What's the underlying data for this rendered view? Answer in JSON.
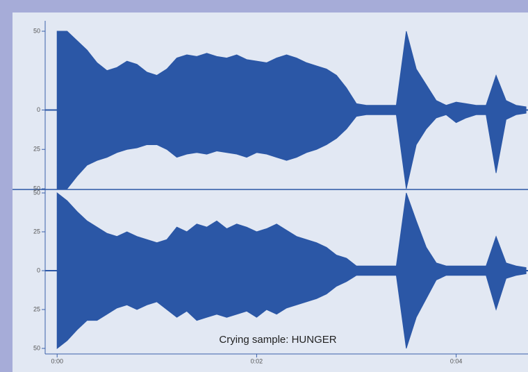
{
  "chart_data": {
    "type": "waveform",
    "caption": "Crying sample: HUNGER",
    "color": "#2b57a6",
    "x": [
      0,
      0.1,
      0.2,
      0.3,
      0.4,
      0.5,
      0.6,
      0.7,
      0.8,
      0.9,
      1.0,
      1.1,
      1.2,
      1.3,
      1.4,
      1.5,
      1.6,
      1.7,
      1.8,
      1.9,
      2.0,
      2.1,
      2.2,
      2.3,
      2.4,
      2.5,
      2.6,
      2.7,
      2.8,
      2.9,
      3.0,
      3.1,
      3.2,
      3.3,
      3.4,
      3.5,
      3.6,
      3.7,
      3.8,
      3.9,
      4.0,
      4.1,
      4.2,
      4.3,
      4.4,
      4.5,
      4.6,
      4.7
    ],
    "xlim": [
      -0.12,
      4.72
    ],
    "xticks": [
      {
        "value": 0,
        "label": "0:00"
      },
      {
        "value": 2,
        "label": "0:02"
      },
      {
        "value": 4,
        "label": "0:04"
      }
    ],
    "channels": [
      {
        "ylim": [
          -50,
          50
        ],
        "yticks": [
          50,
          0,
          {
            "value": -25,
            "label": "25"
          },
          {
            "value": -50,
            "label": "50"
          }
        ],
        "upper": [
          50,
          50,
          44,
          38,
          30,
          25,
          27,
          31,
          29,
          24,
          22,
          26,
          33,
          35,
          34,
          36,
          34,
          33,
          35,
          32,
          31,
          30,
          33,
          35,
          33,
          30,
          28,
          26,
          22,
          14,
          4,
          3,
          3,
          3,
          3,
          50,
          26,
          16,
          6,
          3,
          5,
          4,
          3,
          3,
          22,
          6,
          3,
          2
        ],
        "lower": [
          -50,
          -50,
          -42,
          -35,
          -32,
          -30,
          -27,
          -25,
          -24,
          -22,
          -22,
          -25,
          -30,
          -28,
          -27,
          -28,
          -26,
          -27,
          -28,
          -30,
          -27,
          -28,
          -30,
          -32,
          -30,
          -27,
          -25,
          -22,
          -18,
          -12,
          -4,
          -3,
          -3,
          -3,
          -3,
          -50,
          -22,
          -12,
          -5,
          -3,
          -8,
          -5,
          -3,
          -3,
          -40,
          -6,
          -3,
          -2
        ]
      },
      {
        "ylim": [
          -50,
          50
        ],
        "yticks": [
          50,
          25,
          0,
          {
            "value": -25,
            "label": "25"
          },
          {
            "value": -50,
            "label": "50"
          }
        ],
        "upper": [
          50,
          45,
          38,
          32,
          28,
          24,
          22,
          25,
          22,
          20,
          18,
          20,
          28,
          25,
          30,
          28,
          32,
          27,
          30,
          28,
          25,
          27,
          30,
          26,
          22,
          20,
          18,
          15,
          10,
          8,
          3,
          3,
          3,
          3,
          3,
          50,
          32,
          15,
          5,
          3,
          3,
          3,
          3,
          3,
          22,
          5,
          3,
          2
        ],
        "lower": [
          -50,
          -45,
          -38,
          -32,
          -32,
          -28,
          -24,
          -22,
          -25,
          -22,
          -20,
          -25,
          -30,
          -26,
          -32,
          -30,
          -28,
          -30,
          -28,
          -26,
          -30,
          -25,
          -28,
          -24,
          -22,
          -20,
          -18,
          -15,
          -10,
          -7,
          -3,
          -3,
          -3,
          -3,
          -3,
          -50,
          -30,
          -18,
          -6,
          -3,
          -3,
          -3,
          -3,
          -3,
          -25,
          -5,
          -3,
          -2
        ]
      }
    ]
  }
}
